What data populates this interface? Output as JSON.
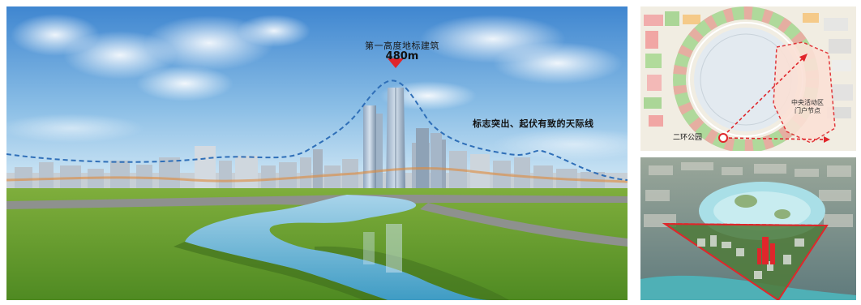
{
  "main": {
    "landmark_title": "第一高度地标建筑",
    "landmark_height": "480m",
    "skyline_caption": "标志突出、起伏有致的天际线"
  },
  "map_top": {
    "cbd_label": "中央活动区\n门户节点",
    "park_label": "二环公园"
  },
  "colors": {
    "skyline_line": "#2f6fb8",
    "arrow_red": "#e0262b",
    "grass": "#5f9a2a",
    "water": "#6fb6d6",
    "sky_top": "#3f86d0"
  }
}
